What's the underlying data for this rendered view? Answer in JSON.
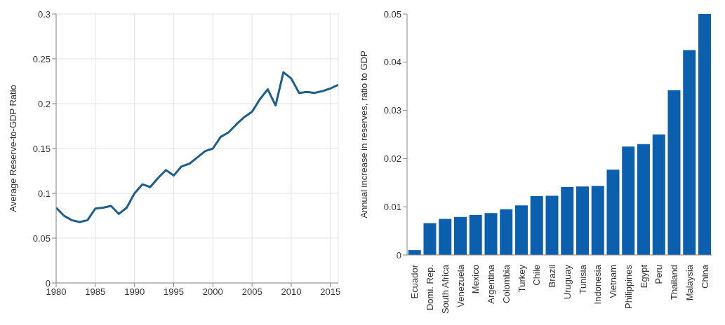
{
  "chart_data": [
    {
      "type": "line",
      "ylabel": "Average Reserve-to-GDP Ratio",
      "color": "#1c5e8c",
      "x": [
        1980,
        1981,
        1982,
        1983,
        1984,
        1985,
        1986,
        1987,
        1988,
        1989,
        1990,
        1991,
        1992,
        1993,
        1994,
        1995,
        1996,
        1997,
        1998,
        1999,
        2000,
        2001,
        2002,
        2003,
        2004,
        2005,
        2006,
        2007,
        2008,
        2009,
        2010,
        2011,
        2012,
        2013,
        2014,
        2015,
        2016
      ],
      "values": [
        0.084,
        0.075,
        0.07,
        0.068,
        0.07,
        0.083,
        0.084,
        0.086,
        0.077,
        0.084,
        0.1,
        0.11,
        0.107,
        0.117,
        0.126,
        0.12,
        0.13,
        0.133,
        0.14,
        0.147,
        0.15,
        0.163,
        0.168,
        0.177,
        0.185,
        0.191,
        0.205,
        0.216,
        0.198,
        0.235,
        0.228,
        0.212,
        0.213,
        0.212,
        0.214,
        0.217,
        0.221
      ],
      "xlim": [
        1980,
        2016
      ],
      "xticks": [
        1980,
        1985,
        1990,
        1995,
        2000,
        2005,
        2010,
        2015
      ],
      "ylim": [
        0,
        0.3
      ],
      "yticks": [
        0,
        0.05,
        0.1,
        0.15,
        0.2,
        0.25,
        0.3
      ],
      "grid": true
    },
    {
      "type": "bar",
      "ylabel": "Annual increase in reserves, ratio to GDP",
      "color": "#0b5fad",
      "categories": [
        "Ecuador",
        "Domi. Rep.",
        "South Africa",
        "Venezuela",
        "Mexico",
        "Argentina",
        "Colombia",
        "Turkey",
        "Chile",
        "Brazil",
        "Uruguay",
        "Tunisia",
        "Indonesia",
        "Vietnam",
        "Philippines",
        "Egypt",
        "Peru",
        "Thailand",
        "Malaysia",
        "China"
      ],
      "values": [
        0.001,
        0.0066,
        0.0075,
        0.0079,
        0.0083,
        0.0087,
        0.0095,
        0.0103,
        0.0122,
        0.0123,
        0.0141,
        0.0142,
        0.0143,
        0.0177,
        0.0225,
        0.023,
        0.025,
        0.0342,
        0.0425,
        0.05
      ],
      "ylim": [
        0,
        0.05
      ],
      "yticks": [
        0,
        0.01,
        0.02,
        0.03,
        0.04,
        0.05
      ],
      "grid": false
    }
  ]
}
